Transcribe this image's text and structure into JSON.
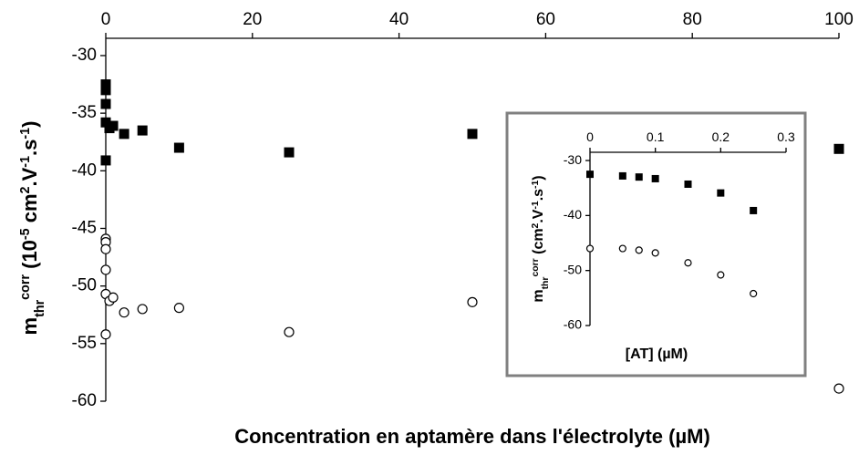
{
  "chart_data": [
    {
      "type": "scatter",
      "xlabel": "Concentration en aptamère dans l'électrolyte (µM)",
      "ylabel": [
        {
          "text": "m"
        },
        {
          "text": "thr",
          "script": "sub"
        },
        {
          "text": "corr",
          "script": "super"
        },
        {
          "text": " (10"
        },
        {
          "text": "-5",
          "script": "super"
        },
        {
          "text": " cm"
        },
        {
          "text": "2",
          "script": "super"
        },
        {
          "text": ".V"
        },
        {
          "text": "-1",
          "script": "super"
        },
        {
          "text": ".s"
        },
        {
          "text": "-1",
          "script": "super"
        },
        {
          "text": ")"
        }
      ],
      "xlim": [
        0,
        100
      ],
      "xticks": [
        0,
        20,
        40,
        60,
        80,
        100
      ],
      "xaxis_position": "top",
      "ylim": [
        -60,
        -28.5
      ],
      "yticks": [
        -30,
        -35,
        -40,
        -45,
        -50,
        -55,
        -60
      ],
      "series": [
        {
          "marker": "square",
          "color": "#000000",
          "filled": true,
          "x": [
            0,
            0,
            0,
            0,
            0.5,
            1,
            2.5,
            5,
            10,
            25,
            50,
            100,
            0
          ],
          "values": [
            -32.5,
            -33.0,
            -34.2,
            -35.8,
            -36.3,
            -36.1,
            -36.8,
            -36.5,
            -38.0,
            -38.4,
            -36.8,
            -38.1,
            -39.1
          ]
        },
        {
          "marker": "circle",
          "color": "#000000",
          "filled": false,
          "x": [
            0,
            0,
            0,
            0,
            0,
            0.5,
            1,
            2.5,
            5,
            10,
            25,
            50,
            100,
            0
          ],
          "values": [
            -45.9,
            -46.2,
            -46.8,
            -48.6,
            -50.7,
            -51.3,
            -51.0,
            -52.3,
            -52.0,
            -51.9,
            -54.0,
            -51.4,
            -58.9,
            -54.2
          ]
        }
      ]
    },
    {
      "type": "scatter",
      "xlabel": "[AT] (µM)",
      "ylabel": [
        {
          "text": "m"
        },
        {
          "text": "thr",
          "script": "sub"
        },
        {
          "text": "corr",
          "script": "super"
        },
        {
          "text": " (cm"
        },
        {
          "text": "2",
          "script": "super"
        },
        {
          "text": ".V"
        },
        {
          "text": "-1",
          "script": "super"
        },
        {
          "text": ".s"
        },
        {
          "text": "-1",
          "script": "super"
        },
        {
          "text": ")"
        }
      ],
      "xlim": [
        0,
        0.3
      ],
      "xticks": [
        0,
        0.1,
        0.2,
        0.3
      ],
      "xaxis_position": "top",
      "ylim": [
        -60,
        -28.5
      ],
      "yticks": [
        -30,
        -40,
        -50,
        -60
      ],
      "series": [
        {
          "marker": "square",
          "color": "#000000",
          "filled": true,
          "x": [
            0,
            0.05,
            0.075,
            0.1,
            0.15,
            0.2,
            0.25
          ],
          "values": [
            -32.5,
            -32.8,
            -33.0,
            -33.3,
            -34.3,
            -35.9,
            -39.1
          ]
        },
        {
          "marker": "circle",
          "color": "#000000",
          "filled": false,
          "x": [
            0,
            0.05,
            0.075,
            0.1,
            0.15,
            0.2,
            0.25
          ],
          "values": [
            -46.0,
            -46.0,
            -46.3,
            -46.8,
            -48.6,
            -50.8,
            -54.2
          ]
        }
      ]
    }
  ]
}
